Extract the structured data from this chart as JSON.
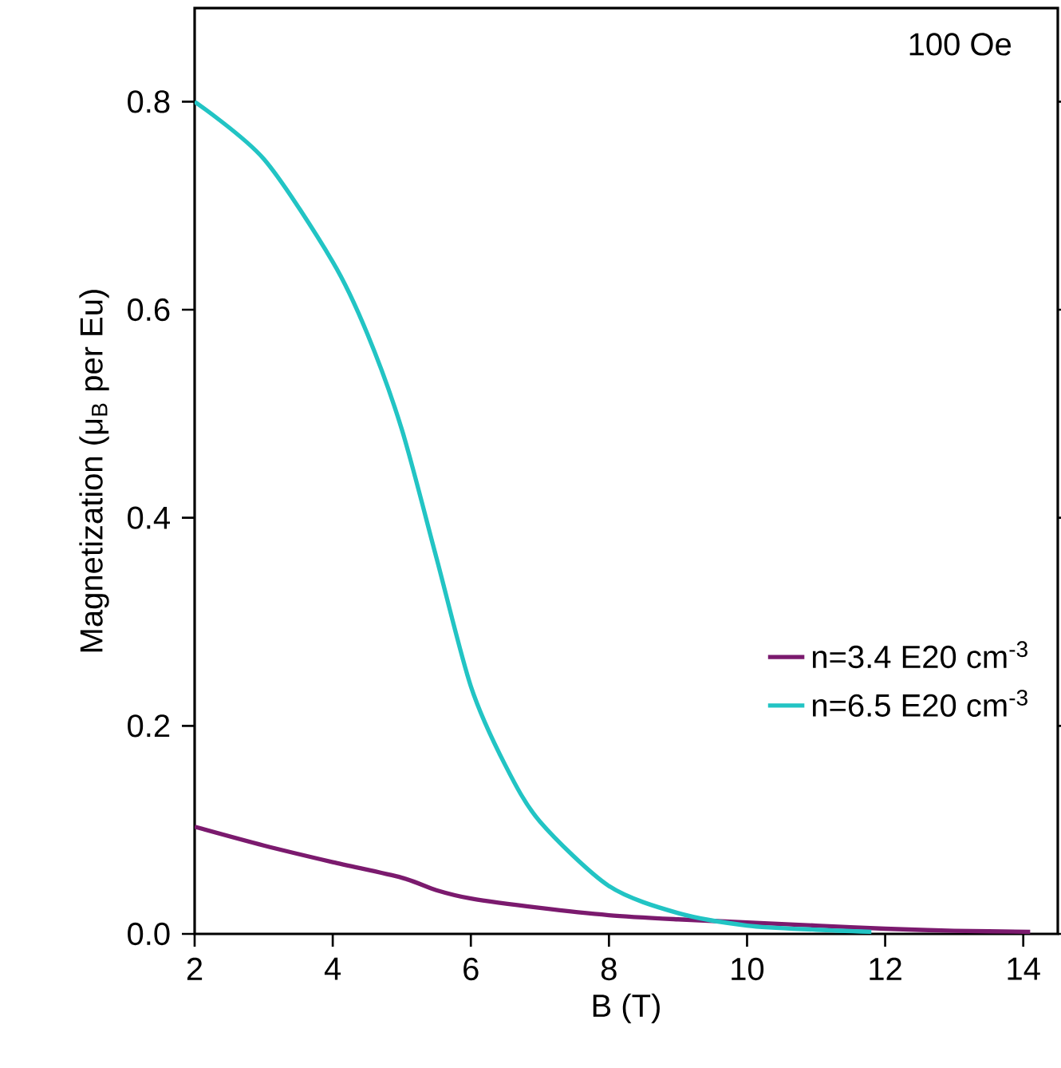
{
  "chart_data": {
    "type": "line",
    "xlabel": "B (T)",
    "ylabel": "Magnetization (μ$_{B}$ per Eu)",
    "annotations": [
      "100 Oe"
    ],
    "xlim": [
      2,
      14.5
    ],
    "xticks": [
      2,
      4,
      6,
      8,
      10,
      12,
      14
    ],
    "ylim": [
      0,
      0.89
    ],
    "yticks": [
      {
        "value": 0,
        "label": "0.0"
      },
      {
        "value": 0.2,
        "label": "0.2"
      },
      {
        "value": 0.4,
        "label": "0.4"
      },
      {
        "value": 0.6,
        "label": "0.6"
      },
      {
        "value": 0.8,
        "label": "0.8"
      }
    ],
    "grid": false,
    "legend": "right",
    "marker": "none",
    "line_style": "solid",
    "series": [
      {
        "name": "n=3.4 E20 cm$^{-3}$",
        "color": "#7b1a6e",
        "x": [
          2,
          3,
          4,
          5,
          5.5,
          6,
          7,
          8,
          9,
          10,
          11,
          12,
          13,
          14.1
        ],
        "values": [
          0.103,
          0.085,
          0.069,
          0.054,
          0.042,
          0.034,
          0.025,
          0.018,
          0.014,
          0.011,
          0.008,
          0.005,
          0.003,
          0.002
        ]
      },
      {
        "name": "n=6.5 E20 cm$^{-3}$",
        "color": "#22c4c4",
        "x": [
          2,
          3,
          4,
          4.5,
          5,
          5.5,
          6,
          6.5,
          7,
          8,
          9,
          10,
          11,
          11.8
        ],
        "values": [
          0.8,
          0.745,
          0.646,
          0.577,
          0.485,
          0.362,
          0.238,
          0.162,
          0.108,
          0.046,
          0.02,
          0.008,
          0.004,
          0.002
        ]
      }
    ]
  }
}
